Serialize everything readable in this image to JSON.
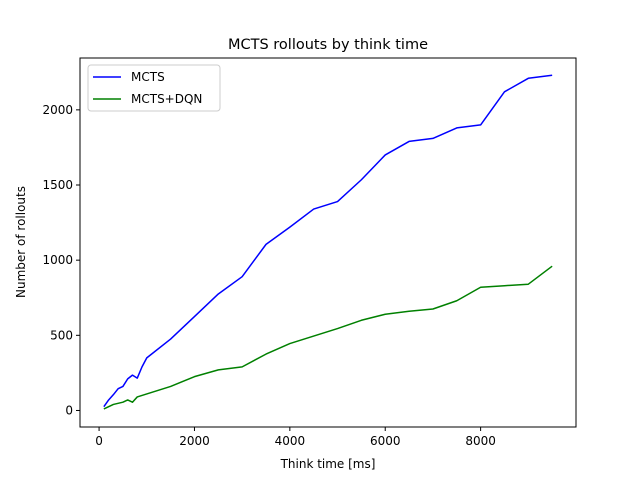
{
  "chart_data": {
    "type": "line",
    "title": "MCTS rollouts by think time",
    "xlabel": "Think time [ms]",
    "ylabel": "Number of rollouts",
    "xlim": [
      -400,
      10000
    ],
    "ylim": [
      -110,
      2345
    ],
    "xticks": [
      0,
      2000,
      4000,
      6000,
      8000
    ],
    "yticks": [
      0,
      500,
      1000,
      1500,
      2000
    ],
    "grid": false,
    "legend_position": "top-left",
    "series": [
      {
        "name": "MCTS",
        "color": "#0000ff",
        "x": [
          100,
          200,
          300,
          400,
          500,
          600,
          700,
          800,
          900,
          1000,
          1500,
          2000,
          2500,
          3000,
          3500,
          4000,
          4500,
          5000,
          5500,
          6000,
          6500,
          7000,
          7500,
          8000,
          8500,
          9000,
          9500
        ],
        "y": [
          25,
          70,
          105,
          145,
          160,
          210,
          235,
          215,
          290,
          350,
          475,
          625,
          775,
          890,
          1105,
          1220,
          1340,
          1390,
          1535,
          1700,
          1790,
          1810,
          1880,
          1900,
          2120,
          2210,
          2230
        ]
      },
      {
        "name": "MCTS+DQN",
        "color": "#008000",
        "x": [
          100,
          300,
          500,
          600,
          700,
          800,
          1000,
          1500,
          2000,
          2500,
          3000,
          3500,
          4000,
          4500,
          5000,
          5500,
          6000,
          6500,
          7000,
          7500,
          8000,
          8500,
          9000,
          9500
        ],
        "y": [
          10,
          40,
          55,
          70,
          55,
          90,
          110,
          160,
          225,
          270,
          290,
          375,
          445,
          495,
          545,
          600,
          640,
          660,
          675,
          730,
          820,
          830,
          840,
          960
        ]
      }
    ]
  }
}
